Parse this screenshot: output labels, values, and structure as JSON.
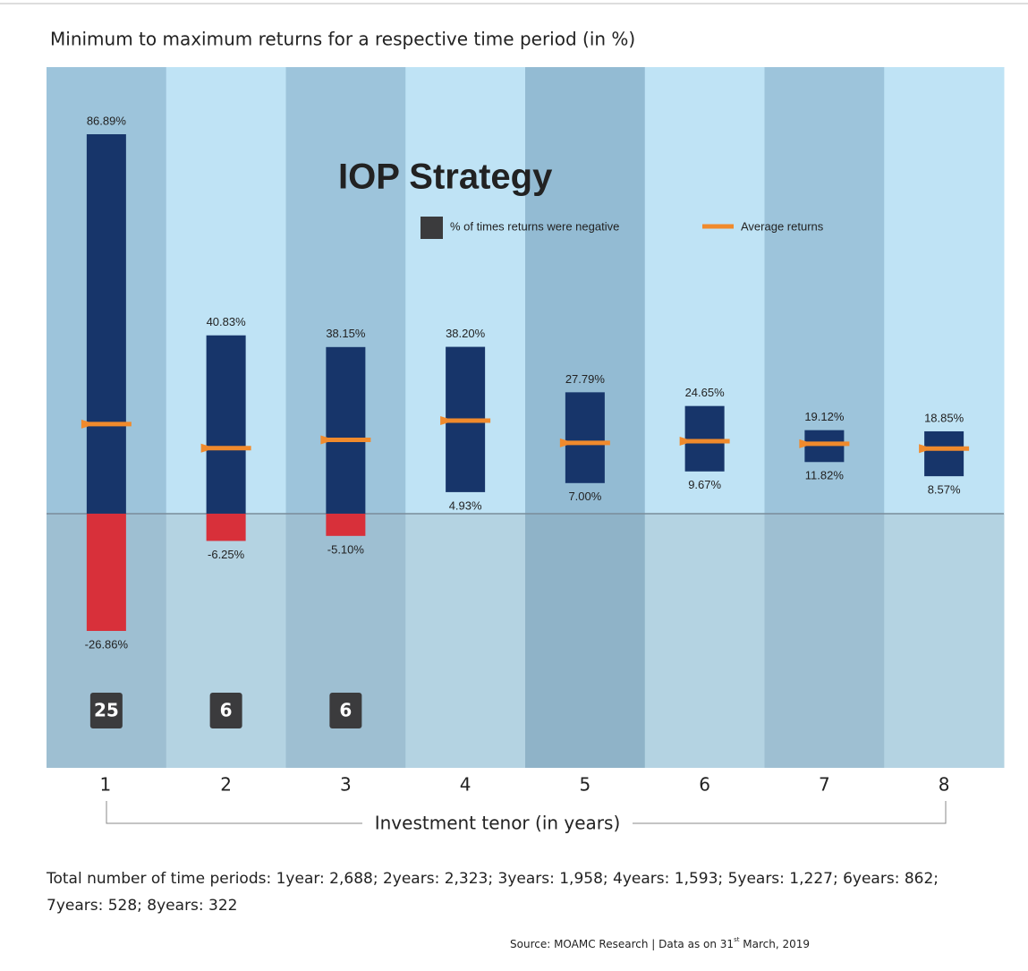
{
  "chart_data": {
    "type": "range_bar",
    "title": "Minimum to maximum returns for a respective time period (in %)",
    "subtitle": "IOP Strategy",
    "categories": [
      "1",
      "2",
      "3",
      "4",
      "5",
      "6",
      "7",
      "8"
    ],
    "x_label": "Investment tenor (in years)",
    "max": {
      "values": [
        86.89,
        40.83,
        38.15,
        38.2,
        27.79,
        24.65,
        19.12,
        18.85
      ],
      "value_labels": [
        "86.89%",
        "40.83%",
        "38.15%",
        "38.20%",
        "27.79%",
        "24.65%",
        "19.12%",
        "18.85%"
      ]
    },
    "min": {
      "values": [
        -26.86,
        -6.25,
        -5.1,
        4.93,
        7.0,
        9.67,
        11.82,
        8.57
      ],
      "value_labels": [
        "-26.86%",
        "-6.25%",
        "-5.10%",
        "4.93%",
        "7.00%",
        "9.67%",
        "11.82%",
        "8.57%"
      ]
    },
    "positive_color": "#17356a",
    "negative_color": "#d8303a",
    "average": {
      "name": "Average returns",
      "color": "#f08a2c",
      "values": [
        20.5,
        15.0,
        16.9,
        21.3,
        16.2,
        16.6,
        16.0,
        14.9
      ]
    },
    "negative_share": {
      "name": "% of times returns were negative",
      "color": "#3b3b3d",
      "values": [
        25,
        6,
        6,
        null,
        null,
        null,
        null,
        null
      ]
    },
    "footnote": [
      "Total number of time periods: 1year: 2,688; 2years: 2,323; 3years: 1,958; 4years: 1,593; 5years: 1,227; 6years: 862;",
      "7years: 528; 8years: 322"
    ],
    "source": [
      "Source: MOAMC Research | Data as on 31",
      "st",
      " March, 2019"
    ]
  }
}
